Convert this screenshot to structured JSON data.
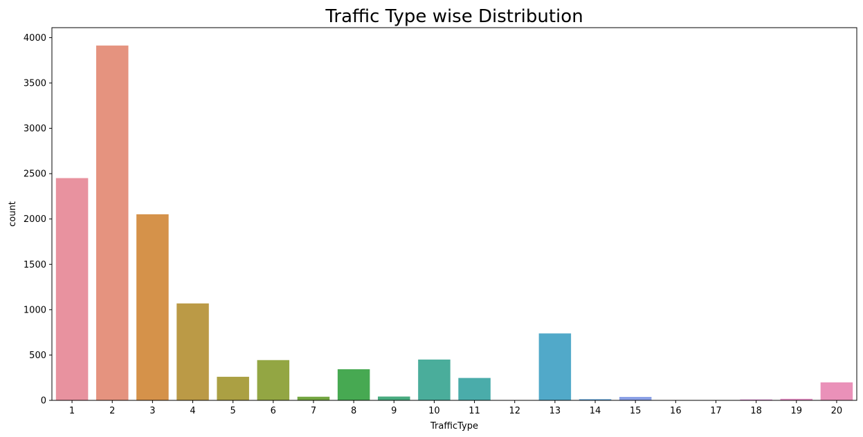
{
  "chart_data": {
    "type": "bar",
    "title": "Traffic Type wise Distribution",
    "xlabel": "TrafficType",
    "ylabel": "count",
    "categories": [
      "1",
      "2",
      "3",
      "4",
      "5",
      "6",
      "7",
      "8",
      "9",
      "10",
      "11",
      "12",
      "13",
      "14",
      "15",
      "16",
      "17",
      "18",
      "19",
      "20"
    ],
    "values": [
      2451,
      3913,
      2052,
      1069,
      260,
      444,
      40,
      343,
      42,
      450,
      247,
      1,
      738,
      13,
      38,
      3,
      1,
      10,
      17,
      198
    ],
    "colors": [
      "#e8929f",
      "#e5937f",
      "#d5924a",
      "#bb9a46",
      "#aba043",
      "#93a643",
      "#74a641",
      "#47a952",
      "#48ab7f",
      "#4aad9b",
      "#4aacaa",
      "#4eabb6",
      "#51a9c9",
      "#64a5dc",
      "#8aa0e6",
      "#b596e8",
      "#cc8ce3",
      "#e28dd7",
      "#e98ec6",
      "#ea91b9"
    ],
    "yticks": [
      0,
      500,
      1000,
      1500,
      2000,
      2500,
      3000,
      3500,
      4000
    ],
    "ylim": [
      0,
      4110
    ],
    "grid": false
  }
}
